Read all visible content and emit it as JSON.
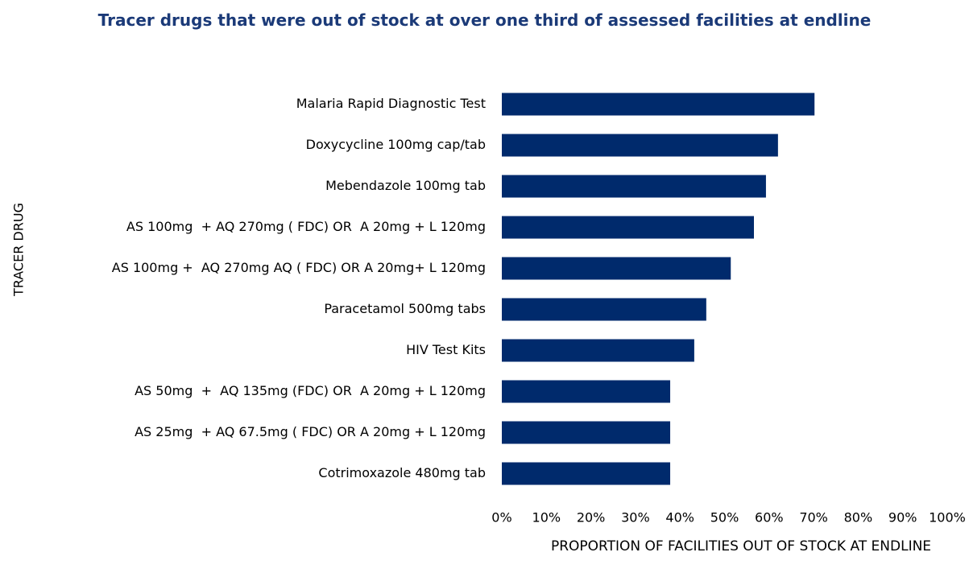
{
  "chart_data": {
    "type": "bar",
    "orientation": "horizontal",
    "title": "Tracer drugs that were out of stock at over one third of assessed facilities at endline",
    "x_label": "PROPORTION OF FACILITIES OUT OF STOCK AT ENDLINE",
    "y_label": "TRACER DRUG",
    "categories": [
      "Malaria Rapid Diagnostic Test",
      "Doxycycline 100mg cap/tab",
      "Mebendazole 100mg tab",
      "AS 100mg  + AQ 270mg ( FDC) OR  A 20mg + L 120mg",
      "AS 100mg +  AQ 270mg AQ ( FDC) OR A 20mg+ L 120mg",
      "Paracetamol 500mg tabs",
      "HIV Test Kits",
      "AS 50mg  +  AQ 135mg (FDC) OR  A 20mg + L 120mg",
      "AS 25mg  + AQ 67.5mg ( FDC) OR A 20mg + L 120mg",
      "Cotrimoxazole 480mg tab"
    ],
    "values": [
      70.2,
      62.0,
      59.3,
      56.6,
      51.4,
      45.9,
      43.2,
      37.8,
      37.8,
      37.8
    ],
    "color": "#002a6c",
    "xlim": [
      0,
      100
    ],
    "xticks": [
      {
        "value": 0,
        "label": "0%"
      },
      {
        "value": 10,
        "label": "10%"
      },
      {
        "value": 20,
        "label": "20%"
      },
      {
        "value": 30,
        "label": "30%"
      },
      {
        "value": 40,
        "label": "40%"
      },
      {
        "value": 50,
        "label": "50%"
      },
      {
        "value": 60,
        "label": "60%"
      },
      {
        "value": 70,
        "label": "70%"
      },
      {
        "value": 80,
        "label": "80%"
      },
      {
        "value": 90,
        "label": "90%"
      },
      {
        "value": 100,
        "label": "100%"
      }
    ],
    "grid": false
  }
}
